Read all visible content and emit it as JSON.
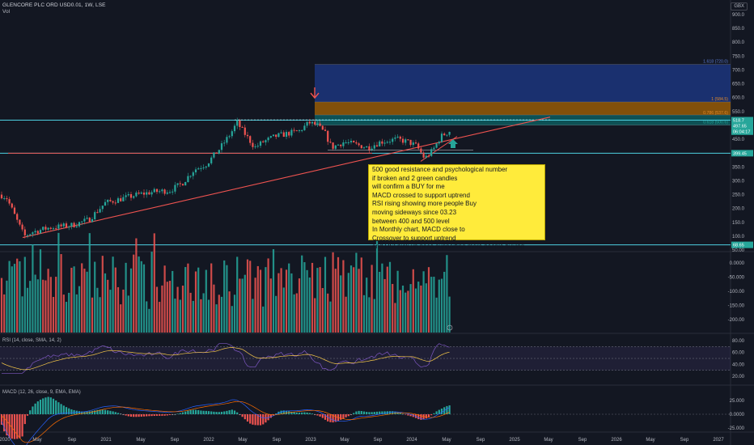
{
  "header": {
    "title": "GLENCORE PLC ORD USD0.01, 1W, LSE",
    "vol_label": "Vol",
    "currency": "GBX"
  },
  "colors": {
    "background": "#131722",
    "up": "#26a69a",
    "down": "#ef5350",
    "level_line": "#4dd0e1",
    "trendline": "#f23645",
    "fib_top": "#1e3a8a",
    "fib_mid": "#b26a00",
    "fib_low": "#0b6b6b",
    "annotation_bg": "#ffeb3b"
  },
  "price_axis": {
    "ticks": [
      "900.0",
      "850.0",
      "800.0",
      "750.0",
      "700.0",
      "650.0",
      "600.0",
      "550.0",
      "500.0",
      "450.0",
      "400.0",
      "350.0",
      "300.0",
      "250.0",
      "200.0",
      "150.0",
      "100.0",
      "50.00"
    ],
    "tags": [
      {
        "id": "tag-top",
        "label": "518.7",
        "color": "#26a69a"
      },
      {
        "id": "tag-price",
        "label": "497.65",
        "color": "#26a69a"
      },
      {
        "id": "tag-price2",
        "label": "06:04:17",
        "color": "#26a69a"
      },
      {
        "id": "tag-mid",
        "label": "399.45",
        "color": "#26a69a"
      },
      {
        "id": "tag-low",
        "label": "68.65",
        "color": "#26a69a"
      }
    ]
  },
  "fib_labels": [
    {
      "id": "fib-1618",
      "label": "1.618 (720.0)",
      "color": "#5b7bd5"
    },
    {
      "id": "fib-1",
      "label": "1 (584.5)",
      "color": "#e08a2b"
    },
    {
      "id": "fib-0786",
      "label": "0.786 (537.6)",
      "color": "#e08a2b"
    },
    {
      "id": "fib-0618",
      "label": "0.618 (500.6)",
      "color": "#26a69a"
    }
  ],
  "macd_vol_axis": {
    "ticks": [
      "0.0000",
      "-50.000",
      "-100.00",
      "-150.00",
      "-200.00"
    ]
  },
  "rsi": {
    "label": "RSI (14, close, SMA, 14, 2)",
    "ticks": [
      "80.00",
      "60.00",
      "40.00",
      "20.00"
    ]
  },
  "macd": {
    "label": "MACD (12, 26, close, 9, EMA, EMA)",
    "ticks": [
      "25.000",
      "0.0000",
      "-25.000"
    ]
  },
  "time_axis": {
    "ticks": [
      "2020",
      "May",
      "Sep",
      "2021",
      "May",
      "Sep",
      "2022",
      "May",
      "Sep",
      "2023",
      "May",
      "Sep",
      "2024",
      "May",
      "Sep",
      "2025",
      "May",
      "Sep",
      "2026",
      "May",
      "Sep",
      "2027"
    ]
  },
  "annotation": {
    "lines": [
      "500 good resistance and psychological number",
      "if broken and 2 green candles",
      "will confirm a BUY for me",
      "MACD crossed to support uptrend",
      "RSI rising showing more people Buy",
      "moving sideways since 03.23",
      "between 400 and 500 level",
      "In Monthly chart, MACD close to",
      "Crossover to support uptrend",
      "and RSI pick up pace supporting more people buying"
    ]
  }
}
